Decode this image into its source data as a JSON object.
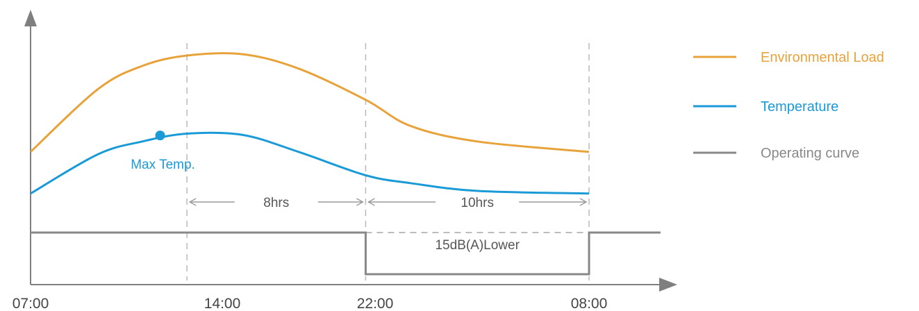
{
  "chart_data": {
    "type": "line",
    "x_ticks": [
      "07:00",
      "14:00",
      "22:00",
      "08:00"
    ],
    "series": [
      {
        "name": "Environmental Load",
        "color": "#e8a23a",
        "points": [
          [
            7,
            5.1
          ],
          [
            10,
            7.5
          ],
          [
            12,
            8.4
          ],
          [
            14,
            8.8
          ],
          [
            16.5,
            8.85
          ],
          [
            19,
            8.3
          ],
          [
            22,
            7.1
          ],
          [
            24,
            6.1
          ],
          [
            27,
            5.5
          ],
          [
            32,
            5.1
          ]
        ]
      },
      {
        "name": "Temperature",
        "color": "#1a9ad6",
        "points": [
          [
            7,
            3.5
          ],
          [
            10,
            5.0
          ],
          [
            12,
            5.5
          ],
          [
            14,
            5.8
          ],
          [
            16.5,
            5.75
          ],
          [
            19,
            5.1
          ],
          [
            22,
            4.2
          ],
          [
            24,
            3.9
          ],
          [
            27,
            3.6
          ],
          [
            32,
            3.5
          ]
        ]
      },
      {
        "name": "Operating curve",
        "color": "#888888",
        "points": [
          [
            7,
            2.0
          ],
          [
            22,
            2.0
          ],
          [
            22,
            0.4
          ],
          [
            32,
            0.4
          ],
          [
            32,
            2.0
          ],
          [
            35.2,
            2.0
          ]
        ]
      }
    ],
    "marker": {
      "x": 12.8,
      "y": 5.73,
      "label": "Max Temp.",
      "color": "#1a9ad6"
    },
    "dashed_verticals": [
      14,
      22,
      32
    ],
    "dashed_reference_y": 2.0,
    "spans": [
      {
        "from": 14,
        "to": 22,
        "label": "8hrs"
      },
      {
        "from": 22,
        "to": 32,
        "label": "10hrs"
      }
    ],
    "step_annotation": "15dB(A)Lower",
    "xlim": [
      7,
      36.5
    ],
    "ylim": [
      0,
      10
    ],
    "legend": "right",
    "grid": false
  }
}
